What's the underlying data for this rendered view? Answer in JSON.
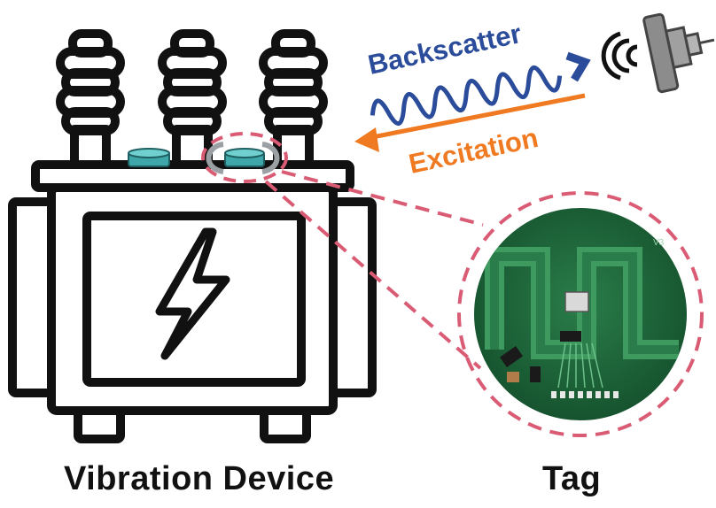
{
  "signals": {
    "backscatter_label": "Backscatter",
    "excitation_label": "Excitation"
  },
  "tag": {
    "version_mark": "V3"
  },
  "captions": {
    "device": "Vibration Device",
    "tag": "Tag"
  },
  "colors": {
    "backscatter": "#2B4C9B",
    "excitation": "#F07A22",
    "highlight": "#D95C74",
    "pcb": "#1E6B3C",
    "sensor_cap": "#3FA7A9"
  }
}
